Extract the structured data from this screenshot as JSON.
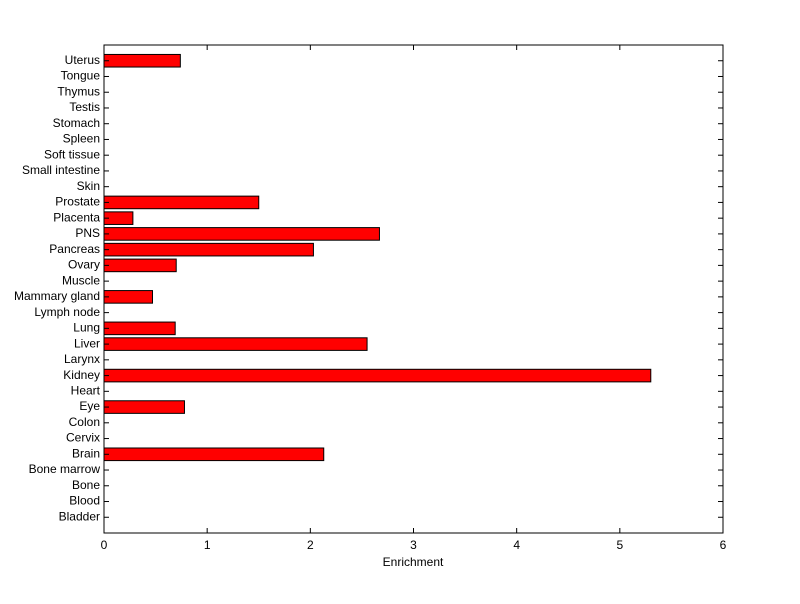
{
  "chart_data": {
    "type": "barh",
    "xlabel": "Enrichment",
    "categories": [
      "Bladder",
      "Blood",
      "Bone",
      "Bone marrow",
      "Brain",
      "Cervix",
      "Colon",
      "Eye",
      "Heart",
      "Kidney",
      "Larynx",
      "Liver",
      "Lung",
      "Lymph node",
      "Mammary gland",
      "Muscle",
      "Ovary",
      "Pancreas",
      "PNS",
      "Placenta",
      "Prostate",
      "Skin",
      "Small intestine",
      "Soft tissue",
      "Spleen",
      "Stomach",
      "Testis",
      "Thymus",
      "Tongue",
      "Uterus"
    ],
    "values": [
      0,
      0,
      0,
      0,
      2.13,
      0,
      0,
      0.78,
      0,
      5.3,
      0,
      2.55,
      0.69,
      0,
      0.47,
      0,
      0.7,
      2.03,
      2.67,
      0.28,
      1.5,
      0,
      0,
      0,
      0,
      0,
      0,
      0,
      0,
      0.74
    ],
    "color": "#ff0000",
    "xlim": [
      0,
      6
    ],
    "xticks": [
      0,
      1,
      2,
      3,
      4,
      5,
      6
    ]
  }
}
